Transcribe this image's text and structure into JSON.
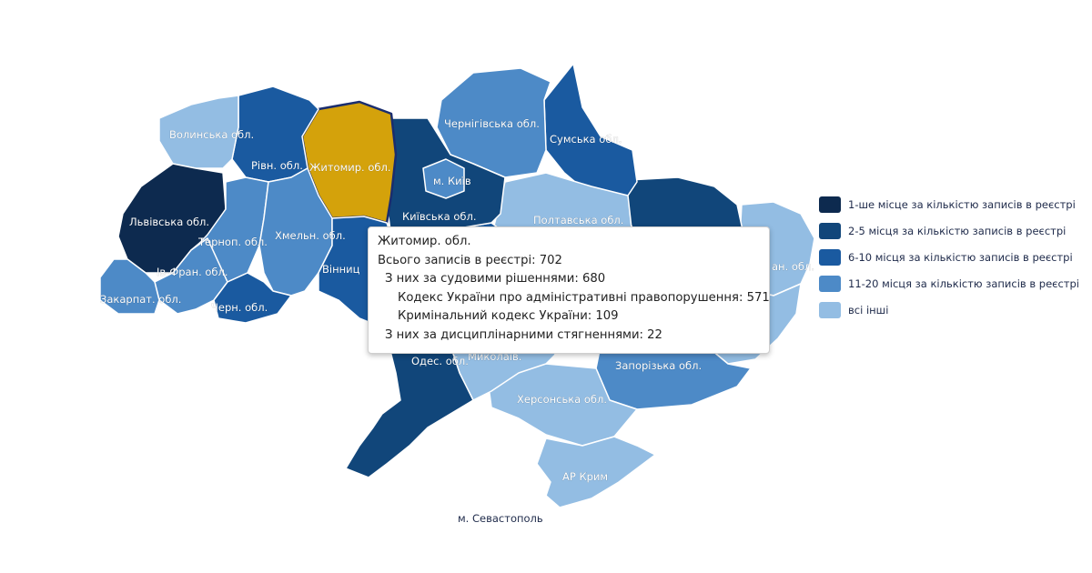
{
  "colors": {
    "tier1": "#0d2a4f",
    "tier2": "#11467a",
    "tier3": "#1a5aa0",
    "tier4": "#4d8ac7",
    "tier5": "#93bde3",
    "selected": "#d4a20b"
  },
  "legend": [
    {
      "label": "1-ше місце за кількістю записів в реєстрі",
      "color": "#0d2a4f"
    },
    {
      "label": "2-5 місця за кількістю записів в реєстрі",
      "color": "#11467a"
    },
    {
      "label": "6-10 місця за кількістю записів в реєстрі",
      "color": "#1a5aa0"
    },
    {
      "label": "11-20 місця за кількістю записів в реєстрі",
      "color": "#4d8ac7"
    },
    {
      "label": "всі інші",
      "color": "#93bde3"
    }
  ],
  "regions": {
    "volyn": {
      "name": "Волинська обл.",
      "tier": "tier5"
    },
    "rivne": {
      "name": "Рівн. обл.",
      "tier": "tier3"
    },
    "zhytomyr": {
      "name": "Житомир. обл.",
      "tier": "selected"
    },
    "kyiv_oblast": {
      "name": "Київська обл.",
      "tier": "tier2"
    },
    "kyiv_city": {
      "name": "м. Київ",
      "tier": "tier4"
    },
    "chernihiv": {
      "name": "Чернігівська обл.",
      "tier": "tier4"
    },
    "sumy": {
      "name": "Сумська обл.",
      "tier": "tier3"
    },
    "kharkiv": {
      "name": "",
      "tier": "tier2"
    },
    "luhansk": {
      "name": "",
      "tier": "tier5"
    },
    "donetsk": {
      "name": "",
      "tier": "tier5"
    },
    "lviv": {
      "name": "Львівська обл.",
      "tier": "tier1"
    },
    "ternopil": {
      "name": "Терноп. обл.",
      "tier": "tier4"
    },
    "khmelnytskyi": {
      "name": "Хмельн. обл.",
      "tier": "tier4"
    },
    "vinnytsia": {
      "name": "Вінниц",
      "tier": "tier3"
    },
    "ivano_frankivsk": {
      "name": "Ів-Фран. обл.",
      "tier": "tier4"
    },
    "zakarpattia": {
      "name": "Закарпат. обл.",
      "tier": "tier4"
    },
    "chernivtsi": {
      "name": "Черн. обл.",
      "tier": "tier3"
    },
    "poltava": {
      "name": "Полтавська обл.",
      "tier": "tier5"
    },
    "cherkasy": {
      "name": "",
      "tier": "tier3"
    },
    "kirovohrad": {
      "name": "",
      "tier": "tier5"
    },
    "dnipro": {
      "name": "",
      "tier": "tier4"
    },
    "odesa": {
      "name": "Одес. обл.",
      "tier": "tier2"
    },
    "mykolaiv": {
      "name": "Миколаїв.",
      "tier": "tier5"
    },
    "zaporizhzhia": {
      "name": "Запорізька обл.",
      "tier": "tier4"
    },
    "kherson": {
      "name": "Херсонська обл.",
      "tier": "tier5"
    },
    "crimea": {
      "name": "АР Крим",
      "tier": "tier5"
    }
  },
  "labels": {
    "luhansk_partial": "ан. обл.",
    "sevastopol": "м. Севастополь"
  },
  "tooltip": {
    "region": "Житомир. обл.",
    "total": "Всього записів в реєстрі: 702",
    "court": "З них за судовими рішеннями: 680",
    "admin_code": "Кодекс України про адміністративні правопорушення: 571",
    "criminal_code": "Кримінальний кодекс України: 109",
    "disciplinary": "З них за дисциплінарними стягненнями: 22"
  }
}
